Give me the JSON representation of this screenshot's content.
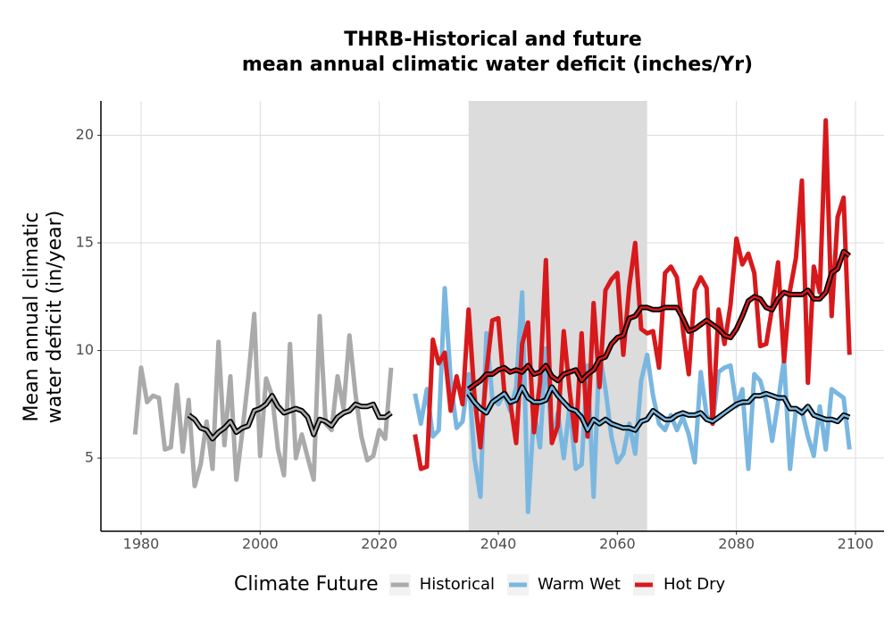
{
  "chart_data": {
    "type": "line",
    "title": [
      "THRB-Historical and future",
      "mean annual climatic water deficit (inches/Yr)"
    ],
    "y_label": [
      "Mean annual climatic",
      "water deficit (in/year)"
    ],
    "legend_title": "Climate Future",
    "legend_position": "bottom",
    "grid": true,
    "highlight": [
      2035,
      2065
    ],
    "xlim": [
      1973.25,
      2104.8
    ],
    "ylim": [
      1.6,
      21.6
    ],
    "xticks": [
      1980,
      2000,
      2020,
      2040,
      2060,
      2080,
      2100
    ],
    "yticks": [
      5,
      10,
      15,
      20
    ],
    "series": [
      {
        "name": "Historical",
        "color": "#aaaaaa",
        "x": [
          1979,
          1980,
          1981,
          1982,
          1983,
          1984,
          1985,
          1986,
          1987,
          1988,
          1989,
          1990,
          1991,
          1992,
          1993,
          1994,
          1995,
          1996,
          1997,
          1998,
          1999,
          2000,
          2001,
          2002,
          2003,
          2004,
          2005,
          2006,
          2007,
          2008,
          2009,
          2010,
          2011,
          2012,
          2013,
          2014,
          2015,
          2016,
          2017,
          2018,
          2019,
          2020,
          2021,
          2022
        ],
        "values": [
          6.1,
          9.2,
          7.6,
          7.9,
          7.8,
          5.4,
          5.5,
          8.4,
          5.3,
          7.7,
          3.7,
          4.7,
          6.7,
          4.5,
          10.4,
          5.6,
          8.8,
          4.0,
          6.2,
          8.7,
          11.7,
          5.1,
          8.7,
          7.9,
          5.4,
          4.2,
          10.3,
          5.0,
          6.1,
          5.0,
          4.0,
          11.6,
          6.6,
          6.3,
          8.8,
          7.3,
          10.7,
          8.0,
          6.0,
          4.9,
          5.1,
          6.3,
          5.9,
          9.2
        ],
        "moving_average": [
          null,
          null,
          null,
          null,
          null,
          null,
          null,
          null,
          null,
          7.0,
          6.8,
          6.4,
          6.3,
          5.9,
          6.2,
          6.4,
          6.7,
          6.2,
          6.4,
          6.5,
          7.2,
          7.3,
          7.5,
          7.9,
          7.4,
          7.1,
          7.2,
          7.3,
          7.2,
          6.9,
          6.1,
          6.8,
          6.7,
          6.5,
          6.9,
          7.1,
          7.2,
          7.5,
          7.4,
          7.4,
          7.5,
          6.9,
          6.9,
          7.1
        ]
      },
      {
        "name": "Warm Wet",
        "color": "#7ab7e0",
        "x": [
          2026,
          2027,
          2028,
          2029,
          2030,
          2031,
          2032,
          2033,
          2034,
          2035,
          2036,
          2037,
          2038,
          2039,
          2040,
          2041,
          2042,
          2043,
          2044,
          2045,
          2046,
          2047,
          2048,
          2049,
          2050,
          2051,
          2052,
          2053,
          2054,
          2055,
          2056,
          2057,
          2058,
          2059,
          2060,
          2061,
          2062,
          2063,
          2064,
          2065,
          2066,
          2067,
          2068,
          2069,
          2070,
          2071,
          2072,
          2073,
          2074,
          2075,
          2076,
          2077,
          2078,
          2079,
          2080,
          2081,
          2082,
          2083,
          2084,
          2085,
          2086,
          2087,
          2088,
          2089,
          2090,
          2091,
          2092,
          2093,
          2094,
          2095,
          2096,
          2097,
          2098,
          2099
        ],
        "values": [
          8.0,
          6.6,
          8.2,
          6.0,
          6.3,
          12.9,
          8.6,
          6.4,
          6.7,
          8.9,
          5.0,
          3.2,
          10.8,
          7.8,
          7.5,
          8.0,
          7.2,
          8.3,
          12.7,
          2.5,
          7.2,
          5.5,
          10.1,
          5.7,
          7.1,
          5.0,
          7.5,
          4.5,
          4.7,
          9.3,
          3.2,
          9.9,
          8.2,
          6.0,
          4.8,
          5.2,
          6.6,
          5.2,
          8.6,
          9.8,
          7.9,
          6.6,
          6.3,
          7.0,
          6.3,
          6.9,
          6.1,
          4.8,
          9.0,
          7.0,
          6.6,
          9.0,
          9.2,
          9.3,
          7.4,
          8.2,
          4.5,
          8.9,
          8.6,
          7.6,
          5.8,
          7.6,
          9.6,
          4.5,
          7.3,
          7.2,
          6.0,
          5.1,
          7.4,
          5.4,
          8.2,
          8.0,
          7.8,
          5.4
        ],
        "moving_average": [
          null,
          null,
          null,
          null,
          null,
          null,
          null,
          null,
          null,
          8.0,
          7.6,
          7.3,
          7.1,
          7.6,
          7.8,
          8.0,
          7.6,
          7.7,
          8.3,
          7.8,
          7.6,
          7.6,
          7.7,
          8.3,
          7.9,
          7.6,
          7.3,
          7.2,
          6.9,
          6.3,
          6.8,
          6.6,
          6.8,
          6.6,
          6.5,
          6.4,
          6.4,
          6.3,
          6.7,
          6.8,
          7.2,
          7.0,
          6.8,
          6.8,
          7.0,
          7.1,
          7.0,
          7.0,
          7.1,
          6.8,
          6.7,
          6.9,
          7.1,
          7.3,
          7.5,
          7.6,
          7.6,
          7.9,
          7.9,
          8.0,
          7.9,
          7.8,
          7.8,
          7.3,
          7.3,
          7.1,
          7.4,
          7.0,
          6.9,
          6.8,
          6.8,
          6.7,
          7.0,
          6.9
        ]
      },
      {
        "name": "Hot Dry",
        "color": "#d7191c",
        "x": [
          2026,
          2027,
          2028,
          2029,
          2030,
          2031,
          2032,
          2033,
          2034,
          2035,
          2036,
          2037,
          2038,
          2039,
          2040,
          2041,
          2042,
          2043,
          2044,
          2045,
          2046,
          2047,
          2048,
          2049,
          2050,
          2051,
          2052,
          2053,
          2054,
          2055,
          2056,
          2057,
          2058,
          2059,
          2060,
          2061,
          2062,
          2063,
          2064,
          2065,
          2066,
          2067,
          2068,
          2069,
          2070,
          2071,
          2072,
          2073,
          2074,
          2075,
          2076,
          2077,
          2078,
          2079,
          2080,
          2081,
          2082,
          2083,
          2084,
          2085,
          2086,
          2087,
          2088,
          2089,
          2090,
          2091,
          2092,
          2093,
          2094,
          2095,
          2096,
          2097,
          2098,
          2099
        ],
        "values": [
          6.1,
          4.5,
          4.6,
          10.5,
          9.4,
          9.9,
          7.2,
          8.8,
          7.5,
          11.9,
          7.9,
          5.5,
          9.0,
          11.4,
          11.5,
          8.1,
          7.6,
          5.7,
          10.3,
          11.3,
          6.2,
          8.5,
          14.2,
          5.7,
          6.5,
          10.9,
          8.1,
          5.8,
          10.8,
          6.0,
          12.2,
          8.3,
          12.8,
          13.3,
          13.6,
          9.8,
          13.0,
          15.0,
          11.0,
          10.8,
          10.9,
          9.2,
          13.6,
          13.9,
          13.4,
          11.0,
          8.9,
          12.8,
          13.4,
          12.9,
          6.6,
          11.9,
          10.3,
          12.1,
          15.2,
          14.0,
          14.5,
          13.6,
          10.2,
          10.3,
          12.0,
          14.1,
          9.5,
          12.8,
          14.3,
          17.9,
          8.5,
          13.9,
          12.7,
          20.7,
          11.6,
          16.2,
          17.1,
          9.8
        ],
        "moving_average": [
          null,
          null,
          null,
          null,
          null,
          null,
          null,
          null,
          null,
          8.2,
          8.4,
          8.6,
          8.9,
          8.9,
          9.1,
          9.2,
          9.0,
          9.1,
          9.0,
          9.3,
          8.9,
          9.0,
          9.3,
          8.8,
          8.6,
          8.9,
          9.0,
          9.1,
          8.6,
          8.9,
          9.1,
          9.6,
          9.7,
          10.3,
          10.6,
          10.7,
          11.5,
          11.6,
          12.0,
          12.0,
          11.9,
          11.9,
          12.0,
          12.0,
          12.0,
          11.5,
          10.9,
          11.0,
          11.2,
          11.4,
          11.2,
          11.0,
          10.7,
          10.6,
          11.0,
          11.6,
          12.3,
          12.5,
          12.4,
          12.0,
          11.9,
          12.4,
          12.7,
          12.6,
          12.6,
          12.6,
          12.8,
          12.4,
          12.4,
          12.7,
          13.6,
          13.8,
          14.6,
          14.4
        ]
      }
    ]
  }
}
